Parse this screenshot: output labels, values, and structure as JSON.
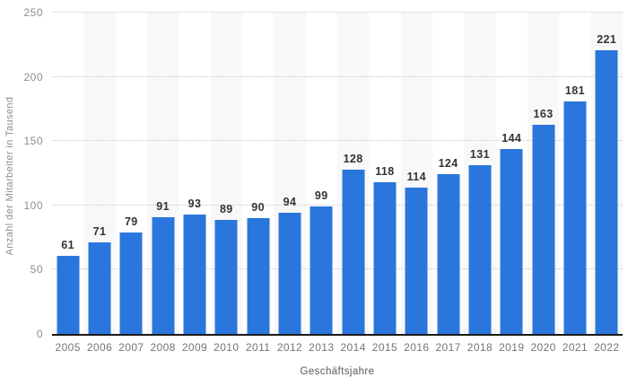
{
  "chart_data": {
    "type": "bar",
    "categories": [
      "2005",
      "2006",
      "2007",
      "2008",
      "2009",
      "2010",
      "2011",
      "2012",
      "2013",
      "2014",
      "2015",
      "2016",
      "2017",
      "2018",
      "2019",
      "2020",
      "2021",
      "2022"
    ],
    "values": [
      61,
      71,
      79,
      91,
      93,
      89,
      90,
      94,
      99,
      128,
      118,
      114,
      124,
      131,
      144,
      163,
      181,
      221
    ],
    "xlabel": "Geschäftsjahre",
    "ylabel": "Anzahl der Mitarbeiter in Tausend",
    "ylim": [
      0,
      250
    ],
    "yticks": [
      0,
      50,
      100,
      150,
      200,
      250
    ],
    "grid": "horizontal-dotted",
    "legend": "none",
    "value_labels": "above-bars",
    "striped_columns": "alternating-even-years",
    "colors": {
      "bar": "#2b76dd",
      "stripe": "#f8f8f8",
      "gridline": "#c9c9c9",
      "axis_line": "#1a1a1a",
      "value_label": "#333333",
      "tick_label": "#8e8e8e",
      "x_tick_label": "#757575",
      "axis_title": "#5a5a5a"
    }
  }
}
